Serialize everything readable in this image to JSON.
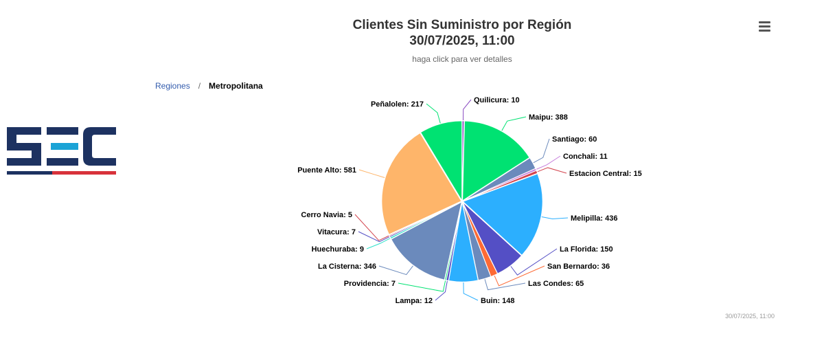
{
  "header": {
    "title_line1": "Clientes Sin Suministro por Región",
    "title_line2": "30/07/2025, 11:00",
    "subtitle": "haga click para ver detalles"
  },
  "breadcrumb": {
    "parent": "Regiones",
    "separator": "/",
    "current": "Metropolitana"
  },
  "logo": {
    "text": "SEC",
    "colors": {
      "dark": "#1d3261",
      "light": "#1ba3d6",
      "red": "#d8323b"
    }
  },
  "menu": {
    "icon": "hamburger-icon"
  },
  "credits": "30/07/2025, 11:00",
  "chart_data": {
    "type": "pie",
    "title": "Clientes Sin Suministro por Región",
    "subtitle": "haga click para ver detalles",
    "slices": [
      {
        "name": "Quilicura",
        "value": 10,
        "label": "Quilicura: 10",
        "color": "#8a4ac1"
      },
      {
        "name": "Maipu",
        "value": 388,
        "label": "Maipu: 388",
        "color": "#00e272"
      },
      {
        "name": "Santiago",
        "value": 60,
        "label": "Santiago: 60",
        "color": "#6b8abc"
      },
      {
        "name": "Conchali",
        "value": 11,
        "label": "Conchali: 11",
        "color": "#c77edc"
      },
      {
        "name": "Estacion Central",
        "value": 15,
        "label": "Estacion Central: 15",
        "color": "#d3444e"
      },
      {
        "name": "Melipilla",
        "value": 436,
        "label": "Melipilla: 436",
        "color": "#2caffe"
      },
      {
        "name": "La Florida",
        "value": 150,
        "label": "La Florida: 150",
        "color": "#544fc5"
      },
      {
        "name": "San Bernardo",
        "value": 36,
        "label": "San Bernardo: 36",
        "color": "#fe6a35"
      },
      {
        "name": "Las Condes",
        "value": 65,
        "label": "Las Condes: 65",
        "color": "#6b8abc"
      },
      {
        "name": "Buin",
        "value": 148,
        "label": "Buin: 148",
        "color": "#2caffe"
      },
      {
        "name": "Lampa",
        "value": 12,
        "label": "Lampa: 12",
        "color": "#544fc5"
      },
      {
        "name": "Providencia",
        "value": 7,
        "label": "Providencia: 7",
        "color": "#00e272"
      },
      {
        "name": "La Cisterna",
        "value": 346,
        "label": "La Cisterna: 346",
        "color": "#6b8abc"
      },
      {
        "name": "Huechuraba",
        "value": 9,
        "label": "Huechuraba: 9",
        "color": "#2ee0ca"
      },
      {
        "name": "Vitacura",
        "value": 7,
        "label": "Vitacura: 7",
        "color": "#544fc5"
      },
      {
        "name": "Cerro Navia",
        "value": 5,
        "label": "Cerro Navia: 5",
        "color": "#d3444e"
      },
      {
        "name": "Puente Alto",
        "value": 581,
        "label": "Puente Alto: 581",
        "color": "#feb56a"
      },
      {
        "name": "Peñalolen",
        "value": 217,
        "label": "Peñalolen: 217",
        "color": "#00e272"
      }
    ]
  }
}
